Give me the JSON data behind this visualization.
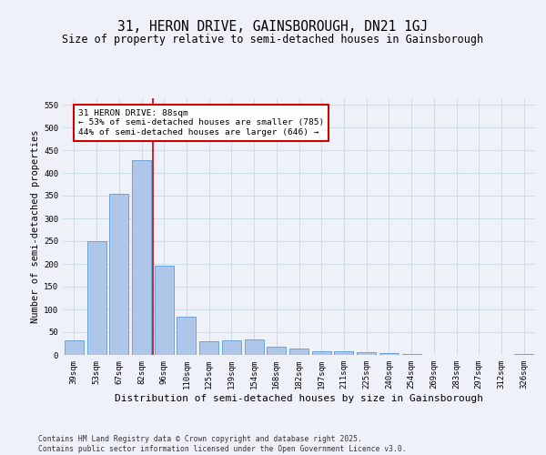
{
  "title": "31, HERON DRIVE, GAINSBOROUGH, DN21 1GJ",
  "subtitle": "Size of property relative to semi-detached houses in Gainsborough",
  "xlabel": "Distribution of semi-detached houses by size in Gainsborough",
  "ylabel": "Number of semi-detached properties",
  "footer": "Contains HM Land Registry data © Crown copyright and database right 2025.\nContains public sector information licensed under the Open Government Licence v3.0.",
  "categories": [
    "39sqm",
    "53sqm",
    "67sqm",
    "82sqm",
    "96sqm",
    "110sqm",
    "125sqm",
    "139sqm",
    "154sqm",
    "168sqm",
    "182sqm",
    "197sqm",
    "211sqm",
    "225sqm",
    "240sqm",
    "254sqm",
    "269sqm",
    "283sqm",
    "297sqm",
    "312sqm",
    "326sqm"
  ],
  "values": [
    33,
    250,
    355,
    428,
    197,
    85,
    30,
    33,
    35,
    19,
    15,
    9,
    9,
    6,
    5,
    2,
    0,
    1,
    0,
    0,
    3
  ],
  "bar_color": "#aec6e8",
  "bar_edge_color": "#5b9bd5",
  "grid_color": "#c8d8e8",
  "background_color": "#eef2f8",
  "plot_bg_color": "#eef2f8",
  "red_line_x": 3.5,
  "annotation_text": "31 HERON DRIVE: 88sqm\n← 53% of semi-detached houses are smaller (785)\n44% of semi-detached houses are larger (646) →",
  "annotation_box_color": "#ffffff",
  "annotation_box_edge": "#cc0000",
  "ylim": [
    0,
    565
  ],
  "yticks": [
    0,
    50,
    100,
    150,
    200,
    250,
    300,
    350,
    400,
    450,
    500,
    550
  ],
  "title_fontsize": 10.5,
  "subtitle_fontsize": 8.5,
  "xlabel_fontsize": 8,
  "ylabel_fontsize": 7.5,
  "tick_fontsize": 6.5,
  "annotation_fontsize": 6.8,
  "footer_fontsize": 5.8
}
